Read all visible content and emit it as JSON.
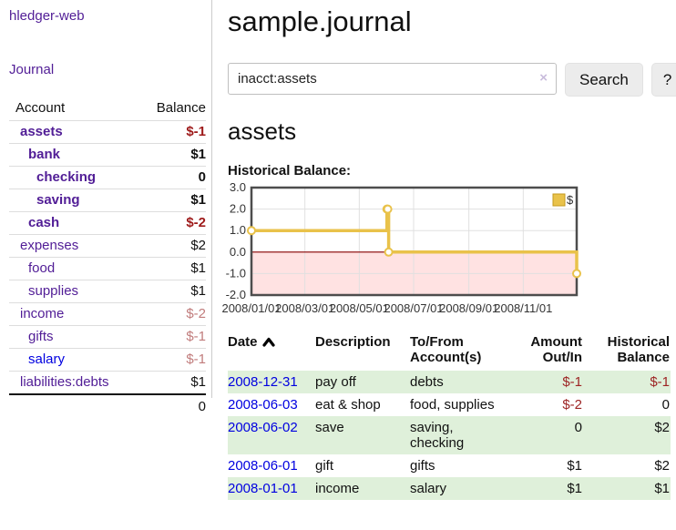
{
  "app": {
    "brand": "hledger-web"
  },
  "sidebar": {
    "nav": [
      {
        "label": "Journal"
      }
    ],
    "table": {
      "account_header": "Account",
      "balance_header": "Balance",
      "accounts": [
        {
          "name": "assets",
          "level": 1,
          "bold": true,
          "balance": "$-1",
          "negative": true
        },
        {
          "name": "bank",
          "level": 2,
          "bold": true,
          "balance": "$1"
        },
        {
          "name": "checking",
          "level": 3,
          "bold": true,
          "balance": "0"
        },
        {
          "name": "saving",
          "level": 3,
          "bold": true,
          "balance": "$1"
        },
        {
          "name": "cash",
          "level": 2,
          "bold": true,
          "balance": "$-2",
          "negative": true
        },
        {
          "name": "expenses",
          "level": 1,
          "balance": "$2"
        },
        {
          "name": "food",
          "level": 2,
          "balance": "$1"
        },
        {
          "name": "supplies",
          "level": 2,
          "balance": "$1"
        },
        {
          "name": "income",
          "level": 1,
          "balance": "$-2",
          "negative": true,
          "muted": true
        },
        {
          "name": "gifts",
          "level": 2,
          "balance": "$-1",
          "negative": true,
          "muted": true
        },
        {
          "name": "salary",
          "level": 2,
          "balance": "$-1",
          "negative": true,
          "muted": true,
          "link_color": "blue"
        },
        {
          "name": "liabilities:debts",
          "level": 1,
          "balance": "$1"
        }
      ],
      "total": "0"
    }
  },
  "header": {
    "title": "sample.journal"
  },
  "search": {
    "value": "inacct:assets",
    "clear_icon": "×",
    "button_label": "Search",
    "help_label": "?"
  },
  "account_page": {
    "heading": "assets",
    "chart_heading": "Historical Balance:"
  },
  "chart_data": {
    "type": "line",
    "step": true,
    "title": "Historical Balance:",
    "series": [
      {
        "name": "$",
        "color": "#e9c24a",
        "points": [
          [
            "2008-01-01",
            1
          ],
          [
            "2008-06-01",
            2
          ],
          [
            "2008-06-02",
            2
          ],
          [
            "2008-06-03",
            0
          ],
          [
            "2008-12-31",
            -1
          ]
        ]
      }
    ],
    "xlim": [
      "2008-01-01",
      "2008-12-31"
    ],
    "ylim": [
      -2,
      3
    ],
    "x_tick_dates": [
      "2008-01-01",
      "2008-03-01",
      "2008-05-01",
      "2008-07-01",
      "2008-09-01",
      "2008-11-01"
    ],
    "x_tick_labels": [
      "2008/01/01",
      "2008/03/01",
      "2008/05/01",
      "2008/07/01",
      "2008/09/01",
      "2008/11/01"
    ],
    "y_tick_labels": [
      "3.0",
      "2.0",
      "1.0",
      "0.0",
      "-1.0",
      "-2.0"
    ],
    "y_tick_values": [
      3,
      2,
      1,
      0,
      -1,
      -2
    ],
    "grid": true,
    "legend_position": "top-right",
    "negative_region_fill": "#ffe2e2",
    "zero_line_color": "#8b0000",
    "border_color": "#4d4d4d",
    "tick_label_color": "#333333"
  },
  "journal": {
    "columns": {
      "date": "Date",
      "description": "Description",
      "tofrom": "To/From Account(s)",
      "amount": "Amount Out/In",
      "balance": "Historical Balance"
    },
    "rows": [
      {
        "date": "2008-12-31",
        "description": "pay off",
        "accounts": "debts",
        "amount": "$-1",
        "balance": "$-1",
        "amount_negative": true,
        "balance_negative": true
      },
      {
        "date": "2008-06-03",
        "description": "eat & shop",
        "accounts": "food, supplies",
        "amount": "$-2",
        "balance": "0",
        "amount_negative": true
      },
      {
        "date": "2008-06-02",
        "description": "save",
        "accounts": "saving, checking",
        "amount": "0",
        "balance": "$2"
      },
      {
        "date": "2008-06-01",
        "description": "gift",
        "accounts": "gifts",
        "amount": "$1",
        "balance": "$2"
      },
      {
        "date": "2008-01-01",
        "description": "income",
        "accounts": "salary",
        "amount": "$1",
        "balance": "$1"
      }
    ]
  },
  "colors": {
    "link_purple": "#511d96",
    "link_blue": "#0000e0",
    "negative_red": "#9e1a1a",
    "negative_muted": "#c17c7c",
    "stripe_green": "#dff0da",
    "chart_gold": "#e9c24a"
  }
}
